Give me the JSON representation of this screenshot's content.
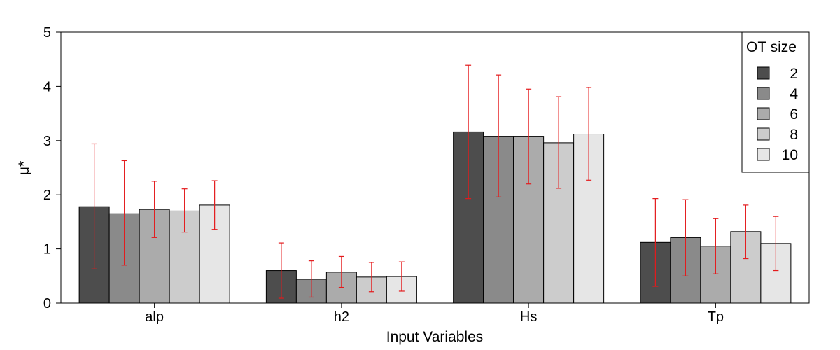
{
  "chart_data": {
    "type": "bar",
    "xlabel": "Input Variables",
    "ylabel": "μ*",
    "ylim": [
      0,
      5
    ],
    "yticks": [
      0,
      1,
      2,
      3,
      4,
      5
    ],
    "categories": [
      "alp",
      "h2",
      "Hs",
      "Tp"
    ],
    "legend_title": "OT size",
    "legend_position": "top-right",
    "grid": false,
    "error_bar_color": "#e41a1c",
    "series": [
      {
        "name": "2",
        "color": "#4d4d4d",
        "values": [
          1.78,
          0.6,
          3.16,
          1.12
        ],
        "err_low": [
          0.63,
          0.09,
          1.93,
          0.31
        ],
        "err_high": [
          2.94,
          1.11,
          4.39,
          1.93
        ]
      },
      {
        "name": "4",
        "color": "#8a8a8a",
        "values": [
          1.65,
          0.44,
          3.08,
          1.21
        ],
        "err_low": [
          0.7,
          0.11,
          1.96,
          0.5
        ],
        "err_high": [
          2.63,
          0.78,
          4.21,
          1.91
        ]
      },
      {
        "name": "6",
        "color": "#ababab",
        "values": [
          1.73,
          0.57,
          3.08,
          1.05
        ],
        "err_low": [
          1.21,
          0.29,
          2.2,
          0.54
        ],
        "err_high": [
          2.25,
          0.86,
          3.95,
          1.56
        ]
      },
      {
        "name": "8",
        "color": "#cccccc",
        "values": [
          1.7,
          0.48,
          2.96,
          1.32
        ],
        "err_low": [
          1.31,
          0.21,
          2.12,
          0.82
        ],
        "err_high": [
          2.11,
          0.75,
          3.81,
          1.81
        ]
      },
      {
        "name": "10",
        "color": "#e6e6e6",
        "values": [
          1.81,
          0.49,
          3.12,
          1.1
        ],
        "err_low": [
          1.36,
          0.22,
          2.27,
          0.6
        ],
        "err_high": [
          2.26,
          0.76,
          3.98,
          1.6
        ]
      }
    ]
  }
}
